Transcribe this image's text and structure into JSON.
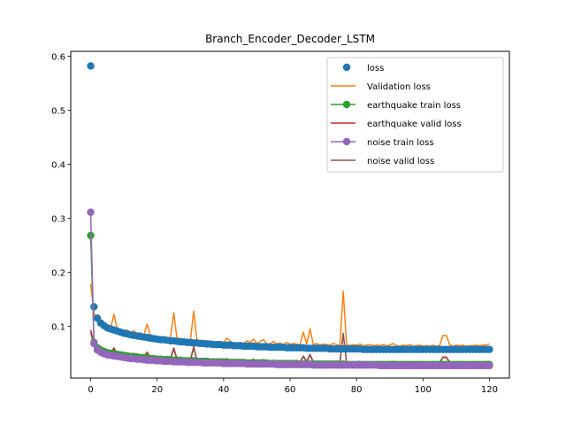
{
  "chart_data": {
    "type": "line",
    "title": "Branch_Encoder_Decoder_LSTM",
    "xlabel": "",
    "ylabel": "",
    "xlim": [
      -6,
      126
    ],
    "ylim": [
      0.004,
      0.609
    ],
    "xticks": [
      0,
      20,
      40,
      60,
      80,
      100,
      120
    ],
    "yticks": [
      0.1,
      0.2,
      0.3,
      0.4,
      0.5,
      0.6
    ],
    "grid": false,
    "legend_position": "upper right",
    "x": [
      0,
      1,
      2,
      3,
      4,
      5,
      6,
      7,
      8,
      9,
      10,
      11,
      12,
      13,
      14,
      15,
      16,
      17,
      18,
      19,
      20,
      21,
      22,
      23,
      24,
      25,
      26,
      27,
      28,
      29,
      30,
      31,
      32,
      33,
      34,
      35,
      36,
      37,
      38,
      39,
      40,
      41,
      42,
      43,
      44,
      45,
      46,
      47,
      48,
      49,
      50,
      51,
      52,
      53,
      54,
      55,
      56,
      57,
      58,
      59,
      60,
      61,
      62,
      63,
      64,
      65,
      66,
      67,
      68,
      69,
      70,
      71,
      72,
      73,
      74,
      75,
      76,
      77,
      78,
      79,
      80,
      81,
      82,
      83,
      84,
      85,
      86,
      87,
      88,
      89,
      90,
      91,
      92,
      93,
      94,
      95,
      96,
      97,
      98,
      99,
      100,
      101,
      102,
      103,
      104,
      105,
      106,
      107,
      108,
      109,
      110,
      111,
      112,
      113,
      114,
      115,
      116,
      117,
      118,
      119,
      120
    ],
    "series": [
      {
        "name": "loss",
        "color": "#1f77b4",
        "style": "markers",
        "values": [
          0.582,
          0.136,
          0.115,
          0.106,
          0.101,
          0.097,
          0.095,
          0.093,
          0.091,
          0.089,
          0.087,
          0.086,
          0.084,
          0.083,
          0.082,
          0.081,
          0.08,
          0.079,
          0.078,
          0.077,
          0.076,
          0.075,
          0.075,
          0.074,
          0.073,
          0.073,
          0.072,
          0.071,
          0.071,
          0.07,
          0.07,
          0.069,
          0.069,
          0.068,
          0.068,
          0.067,
          0.067,
          0.066,
          0.066,
          0.066,
          0.065,
          0.065,
          0.065,
          0.064,
          0.064,
          0.064,
          0.063,
          0.063,
          0.063,
          0.063,
          0.062,
          0.062,
          0.062,
          0.062,
          0.061,
          0.061,
          0.061,
          0.061,
          0.061,
          0.06,
          0.06,
          0.06,
          0.06,
          0.06,
          0.06,
          0.059,
          0.059,
          0.059,
          0.059,
          0.059,
          0.059,
          0.059,
          0.058,
          0.058,
          0.058,
          0.058,
          0.058,
          0.058,
          0.058,
          0.058,
          0.058,
          0.058,
          0.057,
          0.057,
          0.057,
          0.057,
          0.057,
          0.057,
          0.057,
          0.057,
          0.057,
          0.057,
          0.057,
          0.057,
          0.057,
          0.057,
          0.057,
          0.057,
          0.057,
          0.057,
          0.057,
          0.057,
          0.057,
          0.057,
          0.057,
          0.057,
          0.057,
          0.057,
          0.057,
          0.057,
          0.057,
          0.057,
          0.057,
          0.057,
          0.057,
          0.057,
          0.057,
          0.057,
          0.057,
          0.057,
          0.057
        ]
      },
      {
        "name": "Validation loss",
        "color": "#ff7f0e",
        "style": "line",
        "values": [
          0.178,
          0.125,
          0.108,
          0.105,
          0.1,
          0.098,
          0.096,
          0.122,
          0.094,
          0.092,
          0.09,
          0.093,
          0.087,
          0.092,
          0.085,
          0.088,
          0.083,
          0.104,
          0.082,
          0.081,
          0.08,
          0.079,
          0.08,
          0.077,
          0.079,
          0.125,
          0.076,
          0.078,
          0.074,
          0.076,
          0.073,
          0.128,
          0.072,
          0.074,
          0.071,
          0.073,
          0.072,
          0.071,
          0.07,
          0.072,
          0.069,
          0.078,
          0.072,
          0.069,
          0.068,
          0.07,
          0.068,
          0.073,
          0.07,
          0.076,
          0.068,
          0.072,
          0.075,
          0.067,
          0.068,
          0.072,
          0.067,
          0.069,
          0.066,
          0.07,
          0.067,
          0.068,
          0.067,
          0.066,
          0.089,
          0.067,
          0.095,
          0.066,
          0.068,
          0.065,
          0.067,
          0.066,
          0.065,
          0.068,
          0.066,
          0.065,
          0.165,
          0.066,
          0.064,
          0.066,
          0.065,
          0.067,
          0.064,
          0.065,
          0.066,
          0.064,
          0.065,
          0.064,
          0.066,
          0.064,
          0.065,
          0.068,
          0.064,
          0.063,
          0.065,
          0.064,
          0.066,
          0.063,
          0.064,
          0.065,
          0.063,
          0.064,
          0.063,
          0.065,
          0.063,
          0.064,
          0.083,
          0.083,
          0.066,
          0.063,
          0.065,
          0.064,
          0.065,
          0.063,
          0.064,
          0.064,
          0.065,
          0.064,
          0.065,
          0.065,
          0.067
        ]
      },
      {
        "name": "earthquake train loss",
        "color": "#2ca02c",
        "style": "line+markers",
        "values": [
          0.268,
          0.07,
          0.06,
          0.056,
          0.053,
          0.051,
          0.05,
          0.049,
          0.048,
          0.047,
          0.046,
          0.045,
          0.044,
          0.044,
          0.043,
          0.042,
          0.042,
          0.041,
          0.04,
          0.04,
          0.039,
          0.039,
          0.038,
          0.038,
          0.038,
          0.037,
          0.037,
          0.037,
          0.036,
          0.036,
          0.036,
          0.036,
          0.035,
          0.035,
          0.035,
          0.035,
          0.034,
          0.034,
          0.034,
          0.034,
          0.034,
          0.033,
          0.033,
          0.033,
          0.033,
          0.033,
          0.033,
          0.032,
          0.032,
          0.032,
          0.032,
          0.032,
          0.032,
          0.032,
          0.031,
          0.031,
          0.031,
          0.031,
          0.031,
          0.031,
          0.031,
          0.031,
          0.031,
          0.03,
          0.03,
          0.03,
          0.03,
          0.03,
          0.03,
          0.03,
          0.03,
          0.03,
          0.03,
          0.03,
          0.03,
          0.03,
          0.03,
          0.029,
          0.029,
          0.029,
          0.029,
          0.029,
          0.029,
          0.029,
          0.029,
          0.029,
          0.029,
          0.029,
          0.029,
          0.029,
          0.029,
          0.029,
          0.029,
          0.029,
          0.029,
          0.029,
          0.029,
          0.029,
          0.029,
          0.029,
          0.029,
          0.029,
          0.029,
          0.029,
          0.029,
          0.029,
          0.029,
          0.029,
          0.029,
          0.029,
          0.029,
          0.029,
          0.029,
          0.029,
          0.029,
          0.029,
          0.029,
          0.029,
          0.029,
          0.029,
          0.029
        ]
      },
      {
        "name": "earthquake valid loss",
        "color": "#d62728",
        "style": "line",
        "values": [
          0.093,
          0.068,
          0.057,
          0.054,
          0.052,
          0.051,
          0.05,
          0.06,
          0.048,
          0.047,
          0.046,
          0.048,
          0.045,
          0.046,
          0.044,
          0.046,
          0.043,
          0.052,
          0.042,
          0.041,
          0.041,
          0.04,
          0.041,
          0.04,
          0.04,
          0.06,
          0.039,
          0.04,
          0.038,
          0.039,
          0.038,
          0.062,
          0.037,
          0.038,
          0.037,
          0.037,
          0.037,
          0.036,
          0.036,
          0.037,
          0.036,
          0.04,
          0.037,
          0.036,
          0.035,
          0.036,
          0.035,
          0.037,
          0.036,
          0.039,
          0.035,
          0.037,
          0.038,
          0.035,
          0.035,
          0.037,
          0.035,
          0.036,
          0.034,
          0.036,
          0.035,
          0.035,
          0.035,
          0.034,
          0.045,
          0.035,
          0.048,
          0.034,
          0.035,
          0.034,
          0.035,
          0.034,
          0.034,
          0.035,
          0.034,
          0.034,
          0.085,
          0.034,
          0.034,
          0.034,
          0.034,
          0.035,
          0.033,
          0.034,
          0.034,
          0.033,
          0.034,
          0.033,
          0.034,
          0.033,
          0.034,
          0.035,
          0.033,
          0.033,
          0.034,
          0.033,
          0.034,
          0.033,
          0.033,
          0.034,
          0.033,
          0.033,
          0.033,
          0.034,
          0.033,
          0.033,
          0.043,
          0.043,
          0.034,
          0.033,
          0.034,
          0.033,
          0.034,
          0.033,
          0.033,
          0.033,
          0.034,
          0.033,
          0.034,
          0.034,
          0.035
        ]
      },
      {
        "name": "noise train loss",
        "color": "#9467bd",
        "style": "line+markers",
        "values": [
          0.311,
          0.068,
          0.056,
          0.052,
          0.049,
          0.047,
          0.046,
          0.045,
          0.044,
          0.043,
          0.042,
          0.041,
          0.04,
          0.04,
          0.039,
          0.039,
          0.038,
          0.037,
          0.037,
          0.037,
          0.036,
          0.036,
          0.035,
          0.035,
          0.035,
          0.034,
          0.034,
          0.034,
          0.034,
          0.033,
          0.033,
          0.033,
          0.033,
          0.033,
          0.032,
          0.032,
          0.032,
          0.032,
          0.032,
          0.032,
          0.031,
          0.031,
          0.031,
          0.031,
          0.031,
          0.031,
          0.031,
          0.03,
          0.03,
          0.03,
          0.03,
          0.03,
          0.03,
          0.03,
          0.03,
          0.03,
          0.029,
          0.029,
          0.029,
          0.029,
          0.029,
          0.029,
          0.029,
          0.029,
          0.029,
          0.029,
          0.029,
          0.028,
          0.028,
          0.028,
          0.028,
          0.028,
          0.028,
          0.028,
          0.028,
          0.028,
          0.028,
          0.028,
          0.028,
          0.028,
          0.028,
          0.028,
          0.028,
          0.028,
          0.028,
          0.028,
          0.028,
          0.027,
          0.027,
          0.027,
          0.027,
          0.027,
          0.027,
          0.027,
          0.027,
          0.027,
          0.027,
          0.027,
          0.027,
          0.027,
          0.027,
          0.027,
          0.027,
          0.027,
          0.027,
          0.027,
          0.027,
          0.027,
          0.027,
          0.027,
          0.027,
          0.027,
          0.027,
          0.027,
          0.027,
          0.027,
          0.027,
          0.027,
          0.027,
          0.027,
          0.027
        ]
      },
      {
        "name": "noise valid loss",
        "color": "#8c564b",
        "style": "line",
        "values": [
          0.088,
          0.065,
          0.055,
          0.052,
          0.05,
          0.049,
          0.048,
          0.057,
          0.046,
          0.045,
          0.044,
          0.046,
          0.043,
          0.044,
          0.042,
          0.044,
          0.041,
          0.05,
          0.04,
          0.04,
          0.039,
          0.039,
          0.039,
          0.038,
          0.038,
          0.058,
          0.037,
          0.038,
          0.037,
          0.037,
          0.036,
          0.06,
          0.036,
          0.037,
          0.035,
          0.036,
          0.035,
          0.035,
          0.035,
          0.036,
          0.034,
          0.039,
          0.035,
          0.034,
          0.034,
          0.035,
          0.034,
          0.036,
          0.034,
          0.038,
          0.034,
          0.036,
          0.037,
          0.033,
          0.034,
          0.036,
          0.033,
          0.035,
          0.033,
          0.035,
          0.033,
          0.034,
          0.033,
          0.033,
          0.044,
          0.033,
          0.047,
          0.033,
          0.034,
          0.032,
          0.033,
          0.033,
          0.032,
          0.034,
          0.033,
          0.032,
          0.087,
          0.033,
          0.032,
          0.033,
          0.032,
          0.033,
          0.032,
          0.032,
          0.033,
          0.032,
          0.032,
          0.032,
          0.033,
          0.032,
          0.032,
          0.034,
          0.032,
          0.031,
          0.032,
          0.032,
          0.033,
          0.031,
          0.032,
          0.032,
          0.031,
          0.032,
          0.031,
          0.032,
          0.031,
          0.032,
          0.042,
          0.042,
          0.033,
          0.031,
          0.032,
          0.032,
          0.032,
          0.031,
          0.032,
          0.032,
          0.032,
          0.032,
          0.032,
          0.032,
          0.033
        ]
      }
    ]
  }
}
